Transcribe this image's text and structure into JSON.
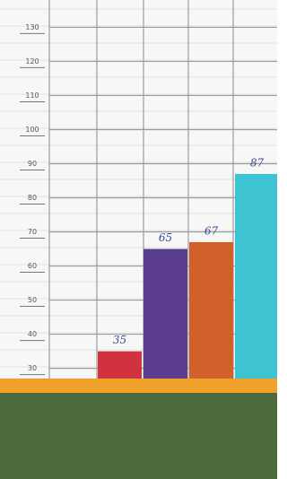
{
  "chart_data": {
    "type": "bar",
    "categories": [
      null,
      null,
      null,
      null
    ],
    "values": [
      35,
      65,
      67,
      87
    ],
    "colors": [
      "#d1323f",
      "#5a3d8c",
      "#d0612b",
      "#3ec3d3"
    ],
    "ylim": [
      27,
      138
    ],
    "yticks": [
      30,
      40,
      50,
      60,
      70,
      80,
      90,
      100,
      110,
      120,
      130
    ],
    "grid": true
  }
}
